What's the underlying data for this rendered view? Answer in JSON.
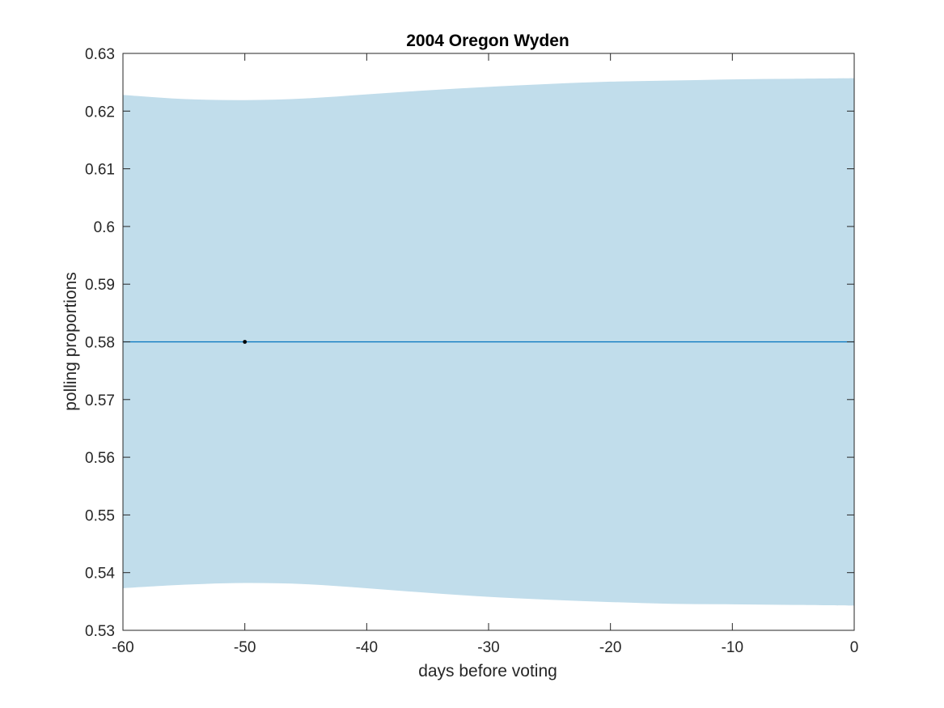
{
  "chart_data": {
    "type": "line",
    "title": "2004 Oregon Wyden",
    "xlabel": "days before voting",
    "ylabel": "polling proportions",
    "xlim": [
      -60,
      0
    ],
    "ylim": [
      0.53,
      0.63
    ],
    "xticks": [
      -60,
      -50,
      -40,
      -30,
      -20,
      -10,
      0
    ],
    "xtick_labels": [
      "-60",
      "-50",
      "-40",
      "-30",
      "-20",
      "-10",
      "0"
    ],
    "yticks": [
      0.53,
      0.54,
      0.55,
      0.56,
      0.57,
      0.58,
      0.59,
      0.6,
      0.61,
      0.62,
      0.63
    ],
    "ytick_labels": [
      "0.53",
      "0.54",
      "0.55",
      "0.56",
      "0.57",
      "0.58",
      "0.59",
      "0.6",
      "0.61",
      "0.62",
      "0.63"
    ],
    "grid": false,
    "band": {
      "x": [
        -60,
        -55,
        -50,
        -45,
        -40,
        -35,
        -30,
        -25,
        -20,
        -15,
        -10,
        -5,
        0
      ],
      "upper": [
        0.6228,
        0.6221,
        0.6219,
        0.6222,
        0.6229,
        0.6236,
        0.6242,
        0.6247,
        0.6251,
        0.6253,
        0.6255,
        0.6256,
        0.6257
      ],
      "lower": [
        0.5373,
        0.5379,
        0.5382,
        0.538,
        0.5373,
        0.5365,
        0.5358,
        0.5353,
        0.5349,
        0.5346,
        0.5345,
        0.5344,
        0.5343
      ],
      "color": "#c1ddeb"
    },
    "series": [
      {
        "x": [
          -60,
          0
        ],
        "y": [
          0.58,
          0.58
        ],
        "color": "#0072bd"
      }
    ],
    "points": [
      {
        "x": -50,
        "y": 0.58,
        "color": "#000000"
      }
    ]
  }
}
